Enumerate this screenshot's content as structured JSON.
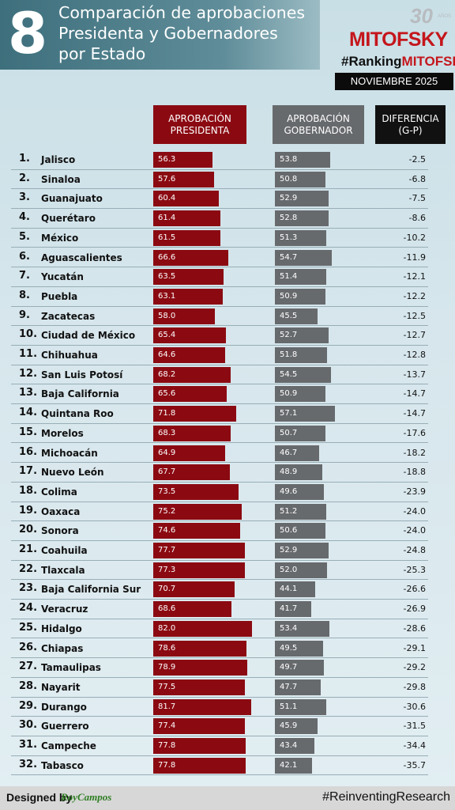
{
  "header": {
    "number": "8",
    "title_line1": "Comparación de aprobaciones",
    "title_line2": "Presidenta y Gobernadores",
    "title_line3": "por Estado",
    "logo_30": "30",
    "logo_anos": "AÑOS",
    "brand": "MITOFSKY",
    "hashtag_prefix": "#Ranking",
    "hashtag_brand": "MITOFSKY",
    "date": "NOVIEMBRE 2025"
  },
  "chart_data": {
    "type": "bar",
    "column_headers": {
      "presidenta_line1": "APROBACIÓN",
      "presidenta_line2": "PRESIDENTA",
      "gobernador_line1": "APROBACIÓN",
      "gobernador_line2": "GOBERNADOR",
      "diferencia_line1": "DIFERENCIA",
      "diferencia_line2": "(G-P)"
    },
    "colors": {
      "presidenta": "#8b0a12",
      "gobernador": "#676a6d",
      "diferencia": "#111111"
    },
    "rows": [
      {
        "rank": "1.",
        "state": "Jalisco",
        "presidenta": "56.3",
        "gobernador": "53.8",
        "diferencia": "-2.5"
      },
      {
        "rank": "2.",
        "state": "Sinaloa",
        "presidenta": "57.6",
        "gobernador": "50.8",
        "diferencia": "-6.8"
      },
      {
        "rank": "3.",
        "state": "Guanajuato",
        "presidenta": "60.4",
        "gobernador": "52.9",
        "diferencia": "-7.5"
      },
      {
        "rank": "4.",
        "state": "Querétaro",
        "presidenta": "61.4",
        "gobernador": "52.8",
        "diferencia": "-8.6"
      },
      {
        "rank": "5.",
        "state": "México",
        "presidenta": "61.5",
        "gobernador": "51.3",
        "diferencia": "-10.2"
      },
      {
        "rank": "6.",
        "state": "Aguascalientes",
        "presidenta": "66.6",
        "gobernador": "54.7",
        "diferencia": "-11.9"
      },
      {
        "rank": "7.",
        "state": "Yucatán",
        "presidenta": "63.5",
        "gobernador": "51.4",
        "diferencia": "-12.1"
      },
      {
        "rank": "8.",
        "state": "Puebla",
        "presidenta": "63.1",
        "gobernador": "50.9",
        "diferencia": "-12.2"
      },
      {
        "rank": "9.",
        "state": "Zacatecas",
        "presidenta": "58.0",
        "gobernador": "45.5",
        "diferencia": "-12.5"
      },
      {
        "rank": "10.",
        "state": "Ciudad de México",
        "presidenta": "65.4",
        "gobernador": "52.7",
        "diferencia": "-12.7"
      },
      {
        "rank": "11.",
        "state": "Chihuahua",
        "presidenta": "64.6",
        "gobernador": "51.8",
        "diferencia": "-12.8"
      },
      {
        "rank": "12.",
        "state": "San Luis Potosí",
        "presidenta": "68.2",
        "gobernador": "54.5",
        "diferencia": "-13.7"
      },
      {
        "rank": "13.",
        "state": "Baja California",
        "presidenta": "65.6",
        "gobernador": "50.9",
        "diferencia": "-14.7"
      },
      {
        "rank": "14.",
        "state": "Quintana Roo",
        "presidenta": "71.8",
        "gobernador": "57.1",
        "diferencia": "-14.7"
      },
      {
        "rank": "15.",
        "state": "Morelos",
        "presidenta": "68.3",
        "gobernador": "50.7",
        "diferencia": "-17.6"
      },
      {
        "rank": "16.",
        "state": "Michoacán",
        "presidenta": "64.9",
        "gobernador": "46.7",
        "diferencia": "-18.2"
      },
      {
        "rank": "17.",
        "state": "Nuevo León",
        "presidenta": "67.7",
        "gobernador": "48.9",
        "diferencia": "-18.8"
      },
      {
        "rank": "18.",
        "state": "Colima",
        "presidenta": "73.5",
        "gobernador": "49.6",
        "diferencia": "-23.9"
      },
      {
        "rank": "19.",
        "state": "Oaxaca",
        "presidenta": "75.2",
        "gobernador": "51.2",
        "diferencia": "-24.0"
      },
      {
        "rank": "20.",
        "state": "Sonora",
        "presidenta": "74.6",
        "gobernador": "50.6",
        "diferencia": "-24.0"
      },
      {
        "rank": "21.",
        "state": "Coahuila",
        "presidenta": "77.7",
        "gobernador": "52.9",
        "diferencia": "-24.8"
      },
      {
        "rank": "22.",
        "state": "Tlaxcala",
        "presidenta": "77.3",
        "gobernador": "52.0",
        "diferencia": "-25.3"
      },
      {
        "rank": "23.",
        "state": "Baja California Sur",
        "presidenta": "70.7",
        "gobernador": "44.1",
        "diferencia": "-26.6"
      },
      {
        "rank": "24.",
        "state": "Veracruz",
        "presidenta": "68.6",
        "gobernador": "41.7",
        "diferencia": "-26.9"
      },
      {
        "rank": "25.",
        "state": "Hidalgo",
        "presidenta": "82.0",
        "gobernador": "53.4",
        "diferencia": "-28.6"
      },
      {
        "rank": "26.",
        "state": "Chiapas",
        "presidenta": "78.6",
        "gobernador": "49.5",
        "diferencia": "-29.1"
      },
      {
        "rank": "27.",
        "state": "Tamaulipas",
        "presidenta": "78.9",
        "gobernador": "49.7",
        "diferencia": "-29.2"
      },
      {
        "rank": "28.",
        "state": "Nayarit",
        "presidenta": "77.5",
        "gobernador": "47.7",
        "diferencia": "-29.8"
      },
      {
        "rank": "29.",
        "state": "Durango",
        "presidenta": "81.7",
        "gobernador": "51.1",
        "diferencia": "-30.6"
      },
      {
        "rank": "30.",
        "state": "Guerrero",
        "presidenta": "77.4",
        "gobernador": "45.9",
        "diferencia": "-31.5"
      },
      {
        "rank": "31.",
        "state": "Campeche",
        "presidenta": "77.8",
        "gobernador": "43.4",
        "diferencia": "-34.4"
      },
      {
        "rank": "32.",
        "state": "Tabasco",
        "presidenta": "77.8",
        "gobernador": "42.1",
        "diferencia": "-35.7"
      }
    ]
  },
  "footer": {
    "designed_by": "Designed by",
    "designer": "RoyCampos",
    "slogan": "#ReinventingResearch"
  }
}
